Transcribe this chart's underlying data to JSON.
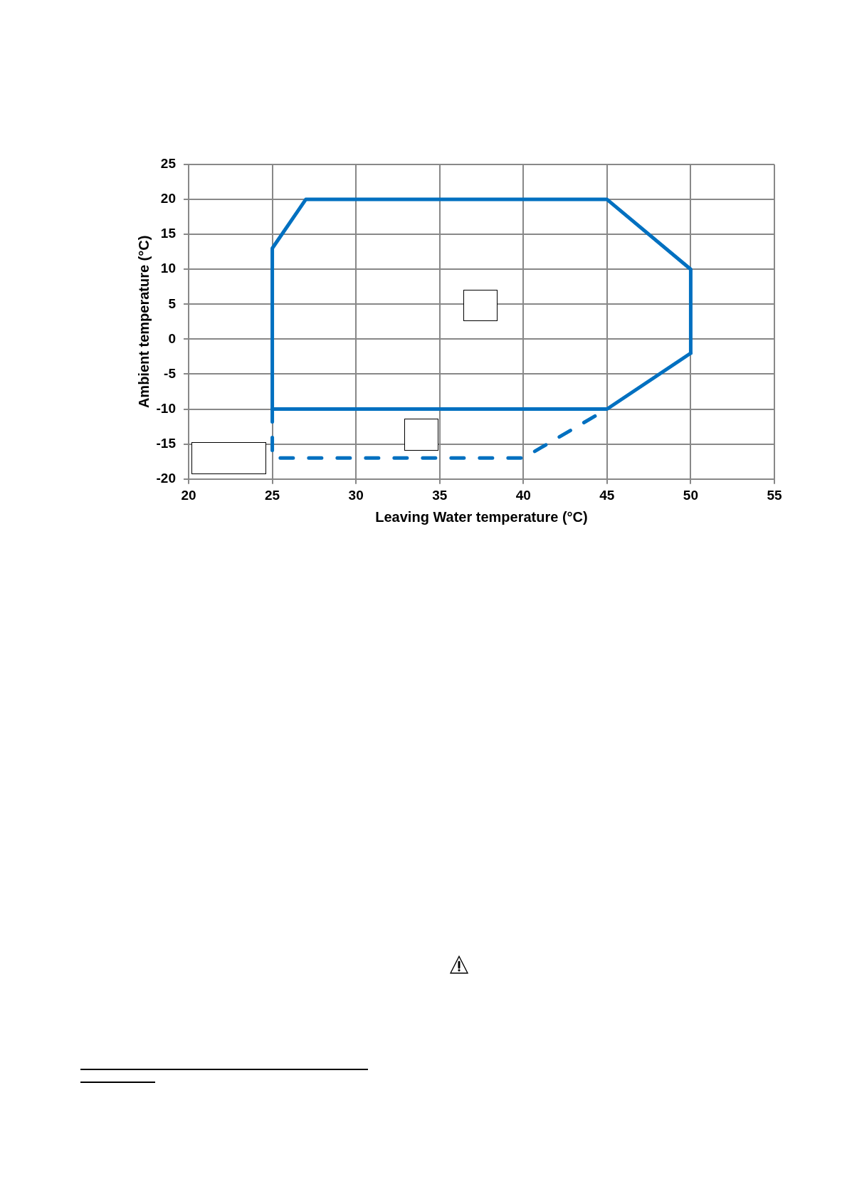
{
  "chart_data": {
    "type": "line",
    "xlabel": "Leaving Water temperature (°C)",
    "ylabel": "Ambient temperature (°C)",
    "xlim": [
      20,
      55
    ],
    "xticks": [
      20,
      25,
      30,
      35,
      40,
      45,
      50,
      55
    ],
    "ylim": [
      -20,
      25
    ],
    "yticks": [
      -20,
      -15,
      -10,
      -5,
      0,
      5,
      10,
      15,
      20,
      25
    ],
    "grid": true,
    "marker": "none",
    "series": [
      {
        "color": "#0070c0",
        "line_style": "solid",
        "x": [
          25,
          25,
          27,
          45,
          50,
          50
        ],
        "values": [
          -10,
          13,
          20,
          20,
          10,
          -2
        ]
      },
      {
        "color": "#0070c0",
        "line_style": "solid",
        "x": [
          25,
          45,
          50
        ],
        "values": [
          -10,
          -10,
          -2
        ]
      },
      {
        "color": "#0070c0",
        "line_style": "dashed",
        "x": [
          25,
          25,
          40,
          45
        ],
        "values": [
          -10,
          -17,
          -17,
          -10
        ]
      }
    ]
  }
}
